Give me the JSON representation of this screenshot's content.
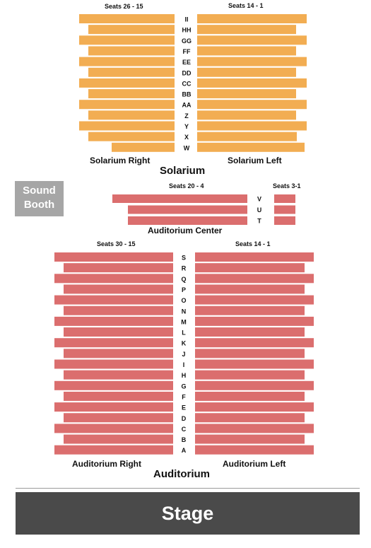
{
  "colors": {
    "solarium": "#f2ad52",
    "auditorium": "#db6e6e",
    "booth": "#a6a6a6",
    "stage": "#4a4a4a"
  },
  "solarium": {
    "name": "Solarium",
    "right_seats": "Seats 26 - 15",
    "left_seats": "Seats 14 - 1",
    "right_label": "Solarium Right",
    "left_label": "Solarium Left",
    "rows": [
      "II",
      "HH",
      "GG",
      "FF",
      "EE",
      "DD",
      "CC",
      "BB",
      "AA",
      "Z",
      "Y",
      "X",
      "W"
    ]
  },
  "center": {
    "label": "Auditorium Center",
    "left_seats": "Seats 20 - 4",
    "right_seats": "Seats 3-1",
    "rows": [
      "V",
      "U",
      "T"
    ]
  },
  "auditorium": {
    "name": "Auditorium",
    "right_seats": "Seats 30 - 15",
    "left_seats": "Seats 14 - 1",
    "right_label": "Auditorium Right",
    "left_label": "Auditorium Left",
    "rows": [
      "S",
      "R",
      "Q",
      "P",
      "O",
      "N",
      "M",
      "L",
      "K",
      "J",
      "I",
      "H",
      "G",
      "F",
      "E",
      "D",
      "C",
      "B",
      "A"
    ]
  },
  "booth": {
    "line1": "Sound",
    "line2": "Booth"
  },
  "stage": {
    "label": "Stage"
  }
}
